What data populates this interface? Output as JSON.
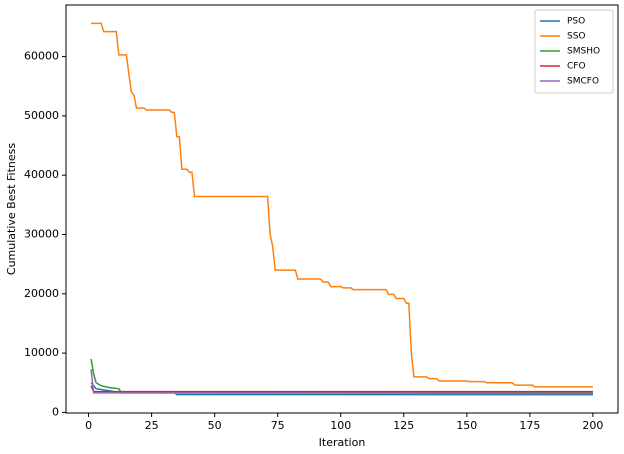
{
  "chart_data": {
    "type": "line",
    "x_label": "Iteration",
    "y_label": "Cumulative Best Fitness",
    "xlim": [
      -8.95,
      209.95
    ],
    "xticks": [
      0,
      25,
      50,
      75,
      100,
      125,
      150,
      175,
      200
    ],
    "ylim": [
      -100,
      68700
    ],
    "yticks": [
      0,
      10000,
      20000,
      30000,
      40000,
      50000,
      60000
    ],
    "legend": "upper right",
    "series": [
      {
        "name": "PSO",
        "color": "#1f77b4",
        "x": [
          1,
          3,
          6,
          10,
          34,
          35,
          200
        ],
        "values": [
          5000,
          4000,
          3800,
          3500,
          3400,
          3000,
          3000
        ]
      },
      {
        "name": "SSO",
        "color": "#ff7f0e",
        "x": [
          1,
          5,
          6,
          11,
          12,
          15,
          16,
          17,
          18,
          19,
          22,
          23,
          32,
          33,
          34,
          35,
          36,
          37,
          39,
          40,
          41,
          42,
          71,
          72,
          73,
          74,
          82,
          83,
          92,
          93,
          95,
          96,
          100,
          101,
          104,
          105,
          118,
          119,
          121,
          122,
          125,
          126,
          127,
          128,
          129,
          134,
          135,
          138,
          139,
          150,
          151,
          157,
          158,
          168,
          169,
          176,
          177,
          200
        ],
        "values": [
          65600,
          65600,
          64200,
          64200,
          60300,
          60300,
          57000,
          54000,
          53500,
          51300,
          51300,
          51000,
          51000,
          50600,
          50600,
          46500,
          46500,
          41000,
          41000,
          40500,
          40500,
          36400,
          36400,
          30000,
          28000,
          24000,
          24000,
          22500,
          22500,
          22000,
          22000,
          21200,
          21200,
          21000,
          21000,
          20700,
          20700,
          19900,
          19900,
          19200,
          19200,
          18400,
          18400,
          10000,
          6000,
          6000,
          5700,
          5700,
          5300,
          5300,
          5200,
          5200,
          5000,
          5000,
          4600,
          4600,
          4300,
          4300
        ]
      },
      {
        "name": "SMSHO",
        "color": "#2ca02c",
        "x": [
          1,
          2,
          3,
          5,
          8,
          12,
          13,
          200
        ],
        "values": [
          9000,
          6500,
          5000,
          4500,
          4200,
          4000,
          3300,
          3300
        ]
      },
      {
        "name": "CFO",
        "color": "#d62728",
        "x": [
          1,
          2,
          200
        ],
        "values": [
          4500,
          3500,
          3500
        ]
      },
      {
        "name": "SMCFO",
        "color": "#9467bd",
        "x": [
          1,
          2,
          200
        ],
        "values": [
          7300,
          3300,
          3200
        ]
      }
    ]
  }
}
